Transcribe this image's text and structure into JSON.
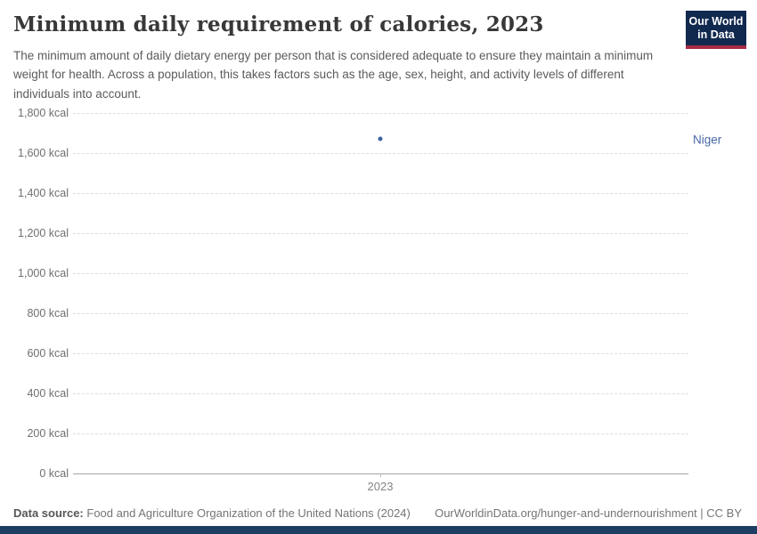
{
  "header": {
    "title": "Minimum daily requirement of calories, 2023",
    "subtitle": "The minimum amount of daily dietary energy per person that is considered adequate to ensure they maintain a minimum weight for health. Across a population, this takes factors such as the age, sex, height, and activity levels of different individuals into account.",
    "logo": {
      "line1": "Our World",
      "line2": "in Data",
      "bg_color": "#12294f",
      "accent_color": "#a42c44"
    }
  },
  "chart_data": {
    "type": "scatter",
    "title": "Minimum daily requirement of calories, 2023",
    "x": [
      2023
    ],
    "series": [
      {
        "name": "Niger",
        "values": [
          1671
        ],
        "color": "#3f63a2",
        "label_color": "#4a68a5"
      }
    ],
    "xlabel": "",
    "ylabel": "",
    "ylim": [
      0,
      1800
    ],
    "ytick_values": [
      0,
      200,
      400,
      600,
      800,
      1000,
      1200,
      1400,
      1600,
      1800
    ],
    "yticks": [
      "0 kcal",
      "200 kcal",
      "400 kcal",
      "600 kcal",
      "800 kcal",
      "1,000 kcal",
      "1,200 kcal",
      "1,400 kcal",
      "1,600 kcal",
      "1,800 kcal"
    ],
    "xticks": [
      "2023"
    ],
    "grid": "horizontal-dashed",
    "legend_position": "right"
  },
  "footer": {
    "datasource_label": "Data source:",
    "datasource_text": "Food and Agriculture Organization of the United Nations (2024)",
    "link_text": "OurWorldinData.org/hunger-and-undernourishment | CC BY"
  },
  "colors": {
    "background": "#ffffff",
    "title_text": "#383838",
    "subtitle_text": "#5b5b5b",
    "gridline": "#dcdcdc",
    "axis_line": "#a3a3a3",
    "tick_label": "#6f6f6f",
    "footer_text": "#757575",
    "brand_bar": "#1d3d63"
  }
}
